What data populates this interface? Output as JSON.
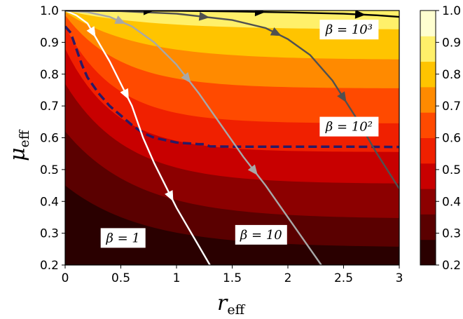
{
  "chart_data": {
    "type": "contour",
    "xlabel": "r",
    "xlabel_sub": "eff",
    "ylabel": "μ",
    "ylabel_sub": "eff",
    "xlim": [
      0,
      3
    ],
    "ylim": [
      0.2,
      1.0
    ],
    "x_ticks": [
      0,
      0.5,
      1,
      1.5,
      2,
      2.5,
      3
    ],
    "x_tick_labels": [
      "0",
      "0.5",
      "1",
      "1.5",
      "2",
      "2.5",
      "3"
    ],
    "y_ticks": [
      0.2,
      0.3,
      0.4,
      0.5,
      0.6,
      0.7,
      0.8,
      0.9,
      1.0
    ],
    "y_tick_labels": [
      "0.2",
      "0.3",
      "0.4",
      "0.5",
      "0.6",
      "0.7",
      "0.8",
      "0.9",
      "1.0"
    ],
    "colorbar": {
      "levels": [
        0.2,
        0.3,
        0.4,
        0.5,
        0.6,
        0.7,
        0.8,
        0.9,
        1.0
      ],
      "tick_labels": [
        "0.2",
        "0.3",
        "0.4",
        "0.5",
        "0.6",
        "0.7",
        "0.8",
        "0.9",
        "1.0"
      ],
      "colors": [
        "#2a0000",
        "#5a0000",
        "#8c0000",
        "#c80000",
        "#f02000",
        "#ff4a00",
        "#ff8a00",
        "#ffc400",
        "#fff06a",
        "#ffffd0"
      ]
    },
    "contour_boundaries": [
      {
        "level": 0.3,
        "plateau": 0.255,
        "y0": 0.45,
        "decay": 0.7
      },
      {
        "level": 0.4,
        "plateau": 0.345,
        "y0": 0.62,
        "decay": 0.65
      },
      {
        "level": 0.5,
        "plateau": 0.455,
        "y0": 0.77,
        "decay": 0.55
      },
      {
        "level": 0.6,
        "plateau": 0.555,
        "y0": 0.88,
        "decay": 0.45
      },
      {
        "level": 0.7,
        "plateau": 0.645,
        "y0": 0.95,
        "decay": 0.45
      },
      {
        "level": 0.8,
        "plateau": 0.755,
        "y0": 0.985,
        "decay": 0.5
      },
      {
        "level": 0.9,
        "plateau": 0.845,
        "y0": 0.995,
        "decay": 0.65
      },
      {
        "level": 1.0,
        "plateau": 0.94,
        "y0": 1.0,
        "decay": 0.75
      }
    ],
    "dashed_curve": {
      "color": "#2a1a66",
      "x": [
        0,
        0.05,
        0.1,
        0.15,
        0.2,
        0.3,
        0.4,
        0.5,
        0.6,
        0.7,
        0.8,
        1.0,
        1.2,
        1.25,
        1.3,
        1.5,
        2.0,
        2.5,
        3.0
      ],
      "y": [
        0.95,
        0.93,
        0.88,
        0.83,
        0.79,
        0.74,
        0.7,
        0.67,
        0.64,
        0.615,
        0.6,
        0.585,
        0.58,
        0.58,
        0.573,
        0.572,
        0.572,
        0.572,
        0.571
      ]
    },
    "trajectories": [
      {
        "name": "β = 1",
        "color": "#ffffff",
        "x": [
          0,
          0.1,
          0.2,
          0.3,
          0.4,
          0.5,
          0.6,
          0.7,
          0.8,
          0.9,
          1.0,
          1.1,
          1.2,
          1.3
        ],
        "y": [
          1.0,
          0.985,
          0.96,
          0.9,
          0.84,
          0.77,
          0.7,
          0.6,
          0.52,
          0.45,
          0.38,
          0.32,
          0.26,
          0.2
        ],
        "label": "β = 1",
        "label_pos": [
          0.52,
          0.285
        ]
      },
      {
        "name": "β = 10",
        "color": "#a8a8a8",
        "x": [
          0,
          0.2,
          0.4,
          0.6,
          0.8,
          1.0,
          1.2,
          1.4,
          1.6,
          1.8,
          2.0,
          2.2,
          2.3
        ],
        "y": [
          1.0,
          0.995,
          0.98,
          0.95,
          0.9,
          0.83,
          0.74,
          0.64,
          0.54,
          0.45,
          0.35,
          0.25,
          0.2
        ],
        "label": "β = 10",
        "label_pos": [
          1.76,
          0.295
        ]
      },
      {
        "name": "β = 10²",
        "color": "#505050",
        "x": [
          0,
          0.5,
          1.0,
          1.5,
          1.8,
          2.0,
          2.2,
          2.4,
          2.6,
          2.8,
          3.0
        ],
        "y": [
          1.0,
          0.998,
          0.99,
          0.97,
          0.945,
          0.91,
          0.86,
          0.78,
          0.67,
          0.55,
          0.44
        ],
        "label": "β = 10²",
        "label_pos": [
          2.55,
          0.635
        ]
      },
      {
        "name": "β = 10³",
        "color": "#000000",
        "x": [
          0,
          0.5,
          1.0,
          1.5,
          2.0,
          2.5,
          2.8,
          3.0
        ],
        "y": [
          1.0,
          1.0,
          0.999,
          0.997,
          0.994,
          0.99,
          0.985,
          0.98
        ],
        "label": "β = 10³",
        "label_pos": [
          2.55,
          0.94
        ]
      }
    ]
  }
}
